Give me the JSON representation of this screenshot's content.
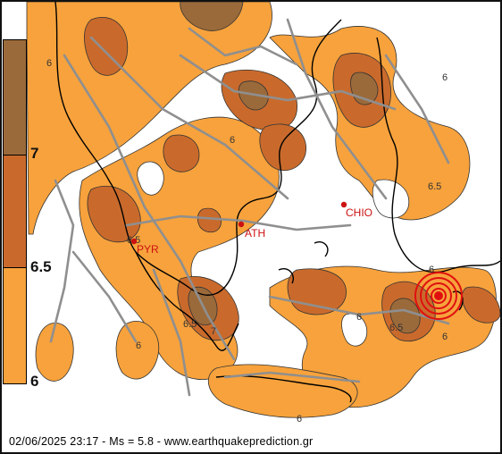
{
  "colors": {
    "level_6": "#f7a23c",
    "level_6_5": "#c96a2c",
    "level_7": "#9b6a3a",
    "land_outline": "#000000",
    "faults": "#8f8f8f",
    "city": "#cc1111",
    "epicenter": "#e01010"
  },
  "legend": {
    "levels": [
      "7",
      "6.5",
      "6"
    ]
  },
  "contour_labels": {
    "l1": "6",
    "l2": "6",
    "l3": "6",
    "l4": "6.5",
    "l5": "6.5",
    "l6": "6.5",
    "l7": "7",
    "l8": "6",
    "l9": "6",
    "l10": "6",
    "l11": "6.5",
    "l12": "6",
    "l13": "6"
  },
  "cities": [
    {
      "code": "ATH"
    },
    {
      "code": "PYR"
    },
    {
      "code": "CHIO"
    }
  ],
  "footer": {
    "text": "02/06/2025 23:17 - Ms = 5.8 - www.earthquakeprediction.gr"
  }
}
